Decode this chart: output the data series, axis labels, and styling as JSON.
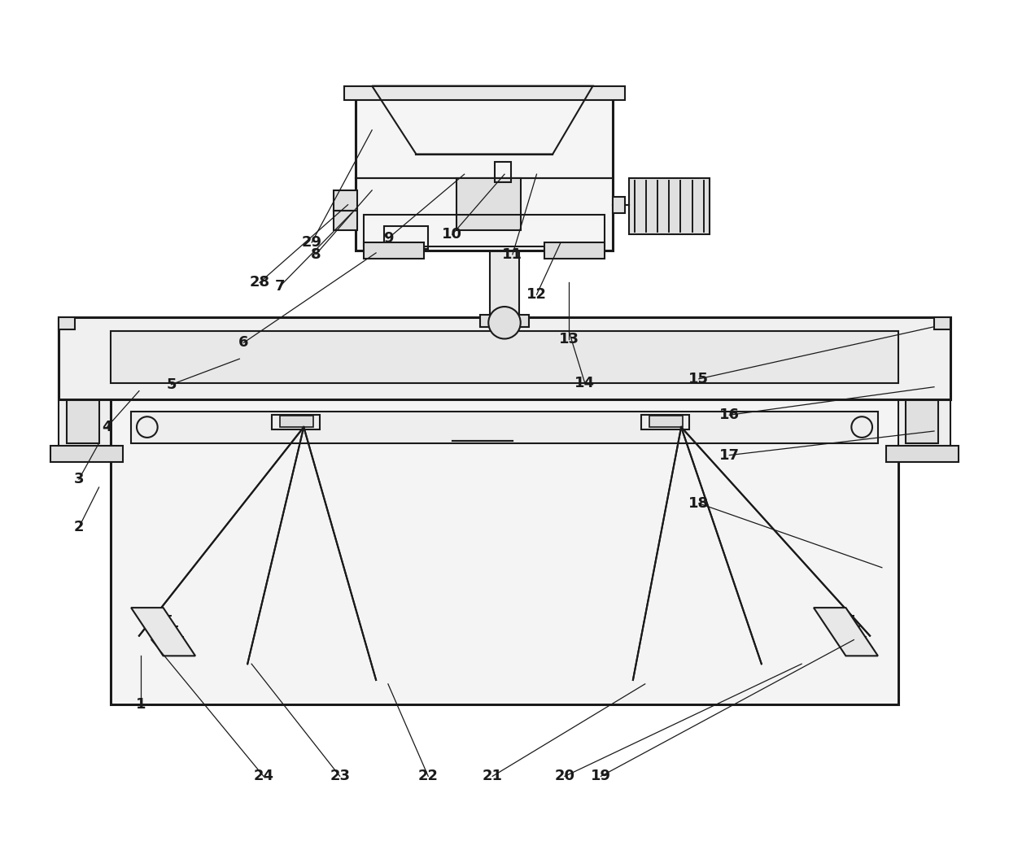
{
  "bg_color": "#ffffff",
  "line_color": "#1a1a1a",
  "lw": 1.5,
  "tlw": 2.2,
  "figsize": [
    12.4,
    10.61
  ],
  "dpi": 100
}
